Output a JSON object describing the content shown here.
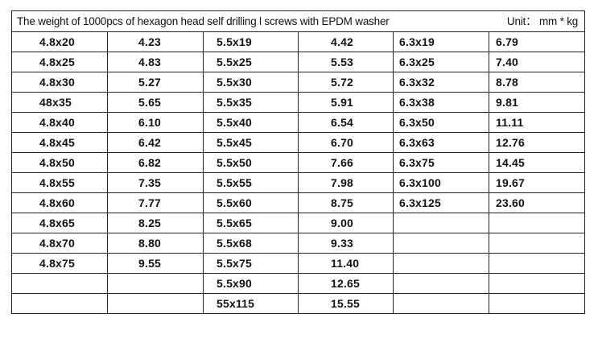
{
  "title": "The weight of 1000pcs of hexagon head self drilling l screws with EPDM washer",
  "unit": "Unit： mm * kg",
  "rows": [
    [
      "4.8x20",
      "4.23",
      "5.5x19",
      "4.42",
      "6.3x19",
      "6.79"
    ],
    [
      "4.8x25",
      "4.83",
      "5.5x25",
      "5.53",
      "6.3x25",
      "7.40"
    ],
    [
      "4.8x30",
      "5.27",
      "5.5x30",
      "5.72",
      "6.3x32",
      "8.78"
    ],
    [
      "48x35",
      "5.65",
      "5.5x35",
      "5.91",
      "6.3x38",
      "9.81"
    ],
    [
      "4.8x40",
      "6.10",
      "5.5x40",
      "6.54",
      "6.3x50",
      "11.11"
    ],
    [
      "4.8x45",
      "6.42",
      "5.5x45",
      "6.70",
      "6.3x63",
      "12.76"
    ],
    [
      "4.8x50",
      "6.82",
      "5.5x50",
      "7.66",
      "6.3x75",
      "14.45"
    ],
    [
      "4.8x55",
      "7.35",
      "5.5x55",
      "7.98",
      "6.3x100",
      "19.67"
    ],
    [
      "4.8x60",
      "7.77",
      "5.5x60",
      "8.75",
      "6.3x125",
      "23.60"
    ],
    [
      "4.8x65",
      "8.25",
      "5.5x65",
      "9.00",
      "",
      ""
    ],
    [
      "4.8x70",
      "8.80",
      "5.5x68",
      "9.33",
      "",
      ""
    ],
    [
      "4.8x75",
      "9.55",
      "5.5x75",
      "11.40",
      "",
      ""
    ],
    [
      "",
      "",
      "5.5x90",
      "12.65",
      "",
      ""
    ],
    [
      "",
      "",
      "55x115",
      "15.55",
      "",
      ""
    ]
  ]
}
